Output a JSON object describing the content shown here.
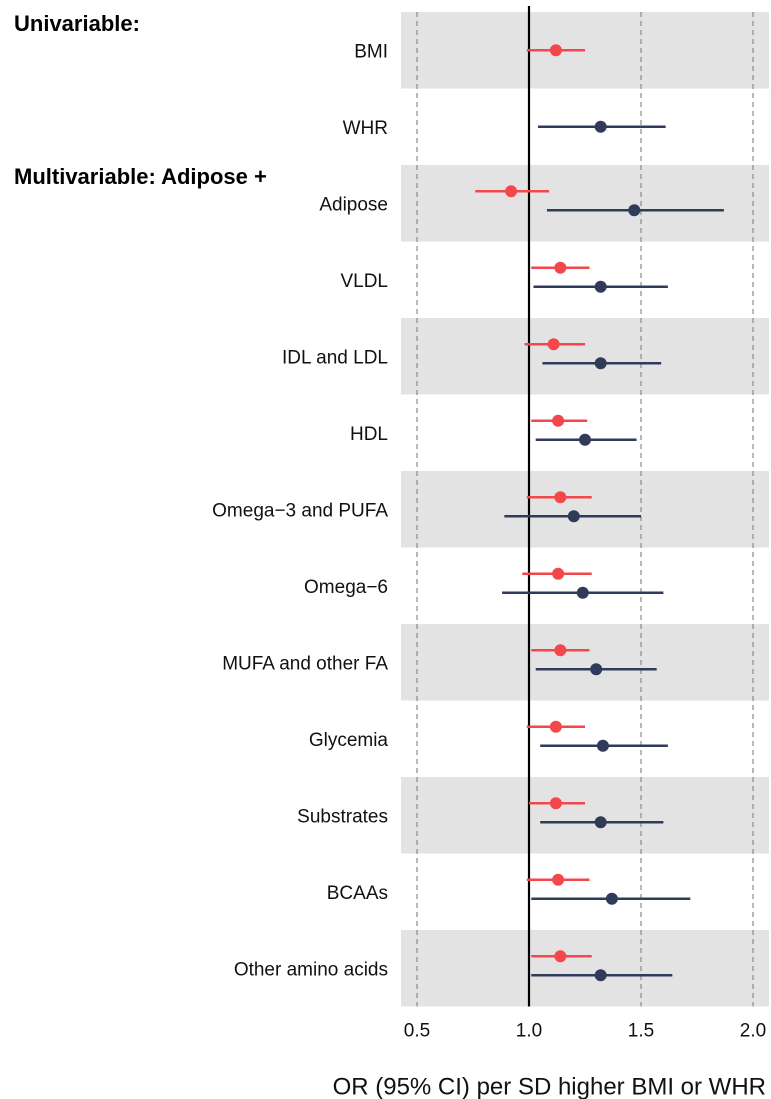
{
  "chart_data": {
    "type": "forest",
    "title": "",
    "xlabel": "OR (95% CI) per SD higher BMI or WHR",
    "ylabel": "",
    "xlim": [
      0.5,
      2.0
    ],
    "x_ticks": [
      0.5,
      1.0,
      1.5,
      2.0
    ],
    "x_tick_labels": [
      "0.5",
      "1.0",
      "1.5",
      "2.0"
    ],
    "reference_line": 1.0,
    "grid": "dashed vertical",
    "colors": {
      "bmi": "#f4474c",
      "whr": "#2f3b58",
      "band": "#e3e3e3"
    },
    "sections": [
      {
        "label": "Univariable:",
        "before_row": 0
      },
      {
        "label": "Multivariable: Adipose +",
        "before_row": 2
      }
    ],
    "rows": [
      {
        "label": "BMI",
        "shaded": true,
        "bmi": {
          "or": 1.12,
          "lo": 0.99,
          "hi": 1.25
        },
        "whr": null
      },
      {
        "label": "WHR",
        "shaded": false,
        "bmi": null,
        "whr": {
          "or": 1.32,
          "lo": 1.04,
          "hi": 1.61
        }
      },
      {
        "label": "Adipose",
        "shaded": true,
        "bmi": {
          "or": 0.92,
          "lo": 0.76,
          "hi": 1.09
        },
        "whr": {
          "or": 1.47,
          "lo": 1.08,
          "hi": 1.87
        }
      },
      {
        "label": "VLDL",
        "shaded": false,
        "bmi": {
          "or": 1.14,
          "lo": 1.01,
          "hi": 1.27
        },
        "whr": {
          "or": 1.32,
          "lo": 1.02,
          "hi": 1.62
        }
      },
      {
        "label": "IDL and LDL",
        "shaded": true,
        "bmi": {
          "or": 1.11,
          "lo": 0.98,
          "hi": 1.25
        },
        "whr": {
          "or": 1.32,
          "lo": 1.06,
          "hi": 1.59
        }
      },
      {
        "label": "HDL",
        "shaded": false,
        "bmi": {
          "or": 1.13,
          "lo": 1.01,
          "hi": 1.26
        },
        "whr": {
          "or": 1.25,
          "lo": 1.03,
          "hi": 1.48
        }
      },
      {
        "label": "Omega−3 and PUFA",
        "shaded": true,
        "bmi": {
          "or": 1.14,
          "lo": 0.99,
          "hi": 1.28
        },
        "whr": {
          "or": 1.2,
          "lo": 0.89,
          "hi": 1.5
        }
      },
      {
        "label": "Omega−6",
        "shaded": false,
        "bmi": {
          "or": 1.13,
          "lo": 0.97,
          "hi": 1.28
        },
        "whr": {
          "or": 1.24,
          "lo": 0.88,
          "hi": 1.6
        }
      },
      {
        "label": "MUFA and other FA",
        "shaded": true,
        "bmi": {
          "or": 1.14,
          "lo": 1.01,
          "hi": 1.27
        },
        "whr": {
          "or": 1.3,
          "lo": 1.03,
          "hi": 1.57
        }
      },
      {
        "label": "Glycemia",
        "shaded": false,
        "bmi": {
          "or": 1.12,
          "lo": 0.99,
          "hi": 1.25
        },
        "whr": {
          "or": 1.33,
          "lo": 1.05,
          "hi": 1.62
        }
      },
      {
        "label": "Substrates",
        "shaded": true,
        "bmi": {
          "or": 1.12,
          "lo": 1.0,
          "hi": 1.25
        },
        "whr": {
          "or": 1.32,
          "lo": 1.05,
          "hi": 1.6
        }
      },
      {
        "label": "BCAAs",
        "shaded": false,
        "bmi": {
          "or": 1.13,
          "lo": 0.99,
          "hi": 1.27
        },
        "whr": {
          "or": 1.37,
          "lo": 1.01,
          "hi": 1.72
        }
      },
      {
        "label": "Other amino acids",
        "shaded": true,
        "bmi": {
          "or": 1.14,
          "lo": 1.01,
          "hi": 1.28
        },
        "whr": {
          "or": 1.32,
          "lo": 1.01,
          "hi": 1.64
        }
      }
    ]
  }
}
